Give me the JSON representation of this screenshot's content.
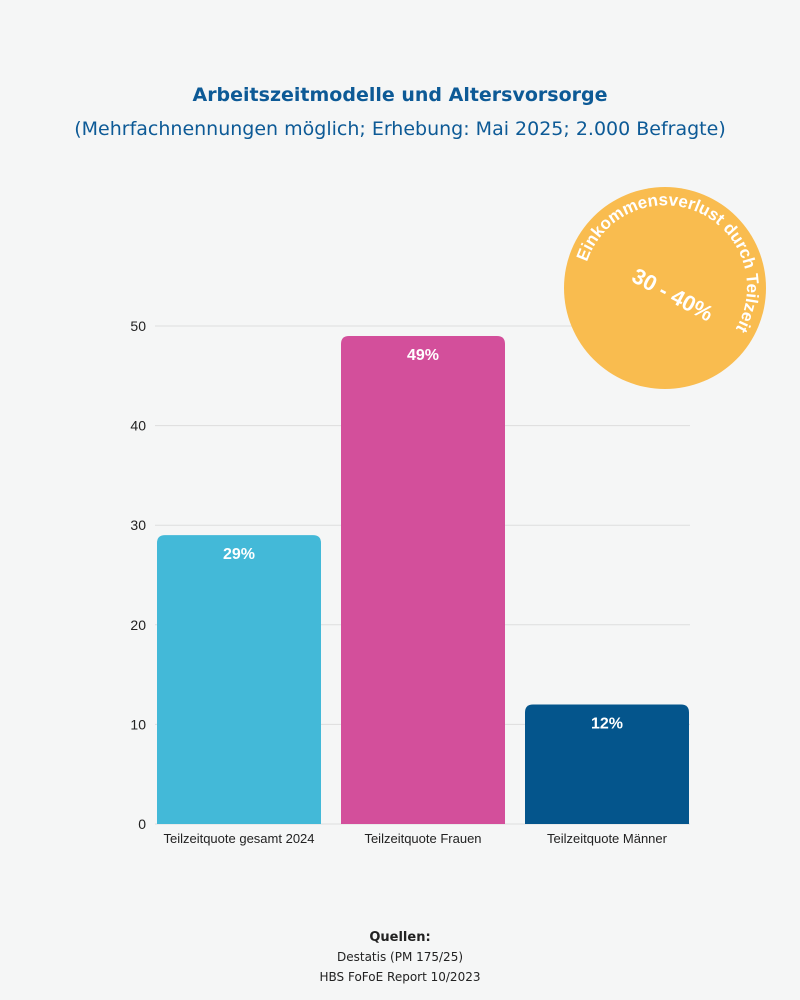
{
  "title": "Arbeitszeitmodelle und Altersvorsorge",
  "subtitle": "(Mehrfachnennungen möglich; Erhebung: Mai 2025; 2.000 Befragte)",
  "badge": {
    "arc_text": "Einkommensverlust durch Teilzeit",
    "value": "30 - 40%",
    "color": "#f9bc4f"
  },
  "sources": {
    "heading": "Quellen:",
    "lines": [
      "Destatis (PM 175/25)",
      "HBS FoFoE Report 10/2023"
    ]
  },
  "chart_data": {
    "type": "bar",
    "categories": [
      "Teilzeitquote gesamt 2024",
      "Teilzeitquote Frauen",
      "Teilzeitquote Männer"
    ],
    "values": [
      29,
      49,
      12
    ],
    "data_labels": [
      "29%",
      "49%",
      "12%"
    ],
    "colors": [
      "#43b9d8",
      "#d34f9b",
      "#04558c"
    ],
    "ylim": [
      0,
      50
    ],
    "yticks": [
      0,
      10,
      20,
      30,
      40,
      50
    ],
    "grid": true
  }
}
